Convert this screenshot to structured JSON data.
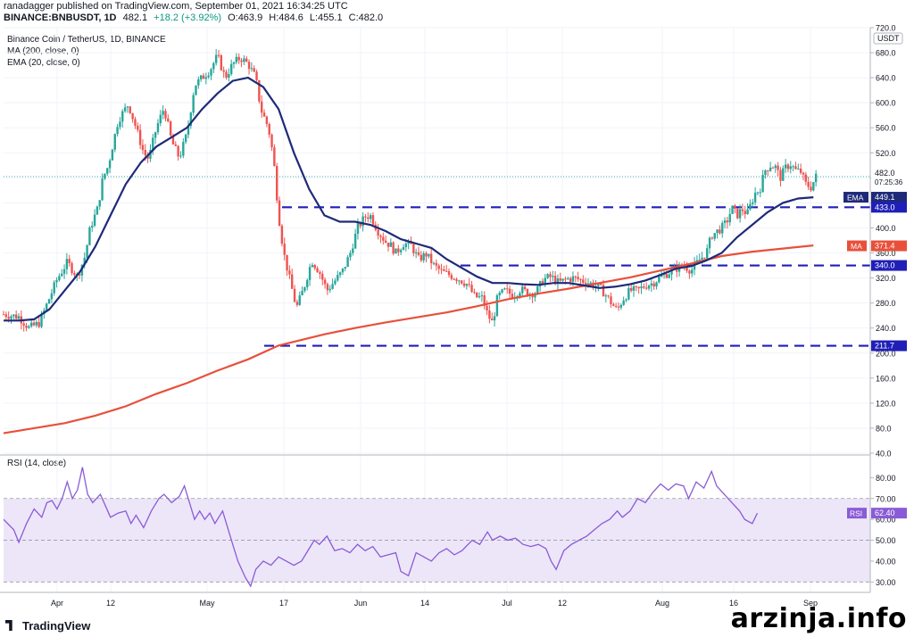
{
  "header": {
    "publisher_line": "ranadagger published on TradingView.com, September 01, 2021 16:34:25 UTC",
    "symbol": "BINANCE:BNBUSDT, 1D",
    "last": "482.1",
    "change": "+18.2 (+3.92%)",
    "open": "O:463.9",
    "high": "H:484.6",
    "low": "L:455.1",
    "close": "C:482.0"
  },
  "legend": {
    "title": "Binance Coin / TetherUS, 1D, BINANCE",
    "ma": "MA (200, close, 0)",
    "ema": "EMA (20, close, 0)",
    "rsi": "RSI (14, close)"
  },
  "footer": {
    "logo": "TradingView",
    "watermark": "arzinja.info"
  },
  "colors": {
    "up": "#26a69a",
    "down": "#ef5350",
    "ema": "#1e2a78",
    "ma": "#e8503a",
    "level": "#1f1fb8",
    "rsi": "#8a5bd6",
    "rsi_band": "#ede6f9"
  },
  "chart_data": [
    {
      "type": "candlestick",
      "currency": "USDT",
      "ylim": [
        40,
        720
      ],
      "yticks": [
        "720.0",
        "680.0",
        "640.0",
        "600.0",
        "560.0",
        "520.0",
        "480.0",
        "440.0",
        "400.0",
        "360.0",
        "320.0",
        "280.0",
        "240.0",
        "200.0",
        "160.0",
        "120.0",
        "80.0",
        "40.0"
      ],
      "xticks": [
        "Apr",
        "12",
        "May",
        "17",
        "Jun",
        "14",
        "Jul",
        "12",
        "Aug",
        "16",
        "Sep"
      ],
      "last_price": {
        "value": 482.0,
        "label": "482.0",
        "countdown": "07:25:36"
      },
      "levels": [
        433.0,
        340.0,
        211.7
      ],
      "level_labels": [
        "433.0",
        "340.0",
        "211.7"
      ],
      "ema_label": {
        "tag": "EMA",
        "value": 449.1,
        "label": "449.1"
      },
      "ma_label": {
        "tag": "MA",
        "value": 371.4,
        "label": "371.4"
      },
      "close_path": [
        [
          0,
          262
        ],
        [
          12,
          258
        ],
        [
          20,
          240
        ],
        [
          28,
          248
        ],
        [
          34,
          278
        ],
        [
          42,
          318
        ],
        [
          50,
          345
        ],
        [
          58,
          322
        ],
        [
          64,
          355
        ],
        [
          68,
          400
        ],
        [
          74,
          432
        ],
        [
          78,
          480
        ],
        [
          82,
          498
        ],
        [
          90,
          572
        ],
        [
          98,
          598
        ],
        [
          104,
          560
        ],
        [
          110,
          520
        ],
        [
          114,
          510
        ],
        [
          120,
          560
        ],
        [
          126,
          592
        ],
        [
          132,
          538
        ],
        [
          138,
          512
        ],
        [
          144,
          550
        ],
        [
          150,
          628
        ],
        [
          156,
          640
        ],
        [
          162,
          652
        ],
        [
          168,
          675
        ],
        [
          174,
          640
        ],
        [
          180,
          662
        ],
        [
          186,
          672
        ],
        [
          192,
          662
        ],
        [
          198,
          640
        ],
        [
          202,
          590
        ],
        [
          208,
          560
        ],
        [
          212,
          512
        ],
        [
          216,
          420
        ],
        [
          220,
          360
        ],
        [
          224,
          324
        ],
        [
          230,
          272
        ],
        [
          236,
          305
        ],
        [
          242,
          348
        ],
        [
          248,
          330
        ],
        [
          254,
          300
        ],
        [
          260,
          315
        ],
        [
          266,
          330
        ],
        [
          272,
          358
        ],
        [
          278,
          400
        ],
        [
          284,
          418
        ],
        [
          288,
          420
        ],
        [
          294,
          395
        ],
        [
          300,
          378
        ],
        [
          304,
          372
        ],
        [
          308,
          360
        ],
        [
          314,
          375
        ],
        [
          320,
          372
        ],
        [
          326,
          350
        ],
        [
          332,
          358
        ],
        [
          338,
          340
        ],
        [
          344,
          330
        ],
        [
          350,
          325
        ],
        [
          358,
          318
        ],
        [
          364,
          310
        ],
        [
          370,
          290
        ],
        [
          376,
          288
        ],
        [
          380,
          262
        ],
        [
          384,
          248
        ],
        [
          388,
          290
        ],
        [
          394,
          300
        ],
        [
          400,
          292
        ],
        [
          406,
          302
        ],
        [
          412,
          296
        ],
        [
          418,
          296
        ],
        [
          424,
          318
        ],
        [
          430,
          322
        ],
        [
          436,
          312
        ],
        [
          442,
          318
        ],
        [
          448,
          320
        ],
        [
          454,
          316
        ],
        [
          460,
          312
        ],
        [
          468,
          305
        ],
        [
          474,
          290
        ],
        [
          478,
          278
        ],
        [
          482,
          268
        ],
        [
          486,
          285
        ],
        [
          492,
          300
        ],
        [
          498,
          300
        ],
        [
          504,
          308
        ],
        [
          510,
          312
        ],
        [
          516,
          322
        ],
        [
          522,
          328
        ],
        [
          528,
          335
        ],
        [
          534,
          340
        ],
        [
          540,
          332
        ],
        [
          546,
          348
        ],
        [
          552,
          360
        ],
        [
          556,
          388
        ],
        [
          560,
          394
        ],
        [
          564,
          400
        ],
        [
          568,
          410
        ],
        [
          572,
          432
        ],
        [
          576,
          420
        ],
        [
          580,
          430
        ],
        [
          584,
          422
        ],
        [
          590,
          455
        ],
        [
          594,
          462
        ],
        [
          598,
          492
        ],
        [
          602,
          500
        ],
        [
          606,
          498
        ],
        [
          610,
          480
        ],
        [
          614,
          496
        ],
        [
          618,
          502
        ],
        [
          622,
          492
        ],
        [
          626,
          490
        ],
        [
          630,
          470
        ],
        [
          634,
          465
        ],
        [
          638,
          482
        ]
      ],
      "ema20_path": [
        [
          0,
          252
        ],
        [
          12,
          252
        ],
        [
          24,
          254
        ],
        [
          36,
          270
        ],
        [
          48,
          300
        ],
        [
          60,
          330
        ],
        [
          72,
          370
        ],
        [
          84,
          420
        ],
        [
          96,
          470
        ],
        [
          108,
          505
        ],
        [
          120,
          530
        ],
        [
          132,
          545
        ],
        [
          144,
          560
        ],
        [
          156,
          590
        ],
        [
          168,
          615
        ],
        [
          180,
          635
        ],
        [
          192,
          640
        ],
        [
          204,
          625
        ],
        [
          216,
          590
        ],
        [
          228,
          520
        ],
        [
          240,
          462
        ],
        [
          252,
          420
        ],
        [
          264,
          410
        ],
        [
          276,
          410
        ],
        [
          288,
          405
        ],
        [
          300,
          395
        ],
        [
          312,
          382
        ],
        [
          324,
          375
        ],
        [
          336,
          368
        ],
        [
          348,
          350
        ],
        [
          360,
          336
        ],
        [
          372,
          322
        ],
        [
          384,
          312
        ],
        [
          396,
          312
        ],
        [
          408,
          310
        ],
        [
          420,
          309
        ],
        [
          432,
          312
        ],
        [
          444,
          312
        ],
        [
          456,
          308
        ],
        [
          468,
          304
        ],
        [
          480,
          306
        ],
        [
          492,
          310
        ],
        [
          504,
          316
        ],
        [
          516,
          325
        ],
        [
          528,
          335
        ],
        [
          540,
          339
        ],
        [
          552,
          348
        ],
        [
          564,
          360
        ],
        [
          576,
          385
        ],
        [
          588,
          405
        ],
        [
          600,
          425
        ],
        [
          612,
          440
        ],
        [
          624,
          447
        ],
        [
          636,
          449
        ]
      ],
      "ma200_path": [
        [
          0,
          72
        ],
        [
          24,
          80
        ],
        [
          48,
          88
        ],
        [
          72,
          100
        ],
        [
          96,
          115
        ],
        [
          120,
          135
        ],
        [
          144,
          152
        ],
        [
          168,
          172
        ],
        [
          192,
          190
        ],
        [
          216,
          212
        ],
        [
          228,
          218
        ],
        [
          252,
          230
        ],
        [
          276,
          240
        ],
        [
          300,
          249
        ],
        [
          324,
          257
        ],
        [
          348,
          265
        ],
        [
          372,
          275
        ],
        [
          396,
          286
        ],
        [
          420,
          295
        ],
        [
          444,
          303
        ],
        [
          468,
          312
        ],
        [
          492,
          321
        ],
        [
          516,
          332
        ],
        [
          540,
          343
        ],
        [
          564,
          355
        ],
        [
          588,
          362
        ],
        [
          612,
          367
        ],
        [
          636,
          372
        ]
      ]
    },
    {
      "type": "line",
      "series_label": "RSI",
      "value_label": "62.40",
      "ylim": [
        25,
        90
      ],
      "yticks": [
        "80.00",
        "70.00",
        "60.00",
        "50.00",
        "40.00",
        "30.00"
      ],
      "bands": [
        30,
        50,
        70
      ],
      "path": [
        [
          0,
          60
        ],
        [
          8,
          55
        ],
        [
          12,
          49
        ],
        [
          18,
          58
        ],
        [
          24,
          65
        ],
        [
          30,
          61
        ],
        [
          34,
          68
        ],
        [
          38,
          69
        ],
        [
          42,
          65
        ],
        [
          46,
          70
        ],
        [
          50,
          78
        ],
        [
          54,
          70
        ],
        [
          58,
          74
        ],
        [
          62,
          85
        ],
        [
          66,
          72
        ],
        [
          70,
          68
        ],
        [
          76,
          72
        ],
        [
          84,
          61
        ],
        [
          90,
          63
        ],
        [
          96,
          64
        ],
        [
          100,
          58
        ],
        [
          104,
          62
        ],
        [
          110,
          56
        ],
        [
          116,
          64
        ],
        [
          122,
          70
        ],
        [
          126,
          72
        ],
        [
          132,
          68
        ],
        [
          138,
          71
        ],
        [
          142,
          76
        ],
        [
          146,
          68
        ],
        [
          150,
          60
        ],
        [
          154,
          64
        ],
        [
          158,
          60
        ],
        [
          162,
          63
        ],
        [
          166,
          58
        ],
        [
          172,
          64
        ],
        [
          178,
          52
        ],
        [
          184,
          40
        ],
        [
          190,
          32
        ],
        [
          194,
          28
        ],
        [
          198,
          36
        ],
        [
          204,
          40
        ],
        [
          210,
          38
        ],
        [
          216,
          42
        ],
        [
          222,
          40
        ],
        [
          228,
          38
        ],
        [
          234,
          40
        ],
        [
          238,
          44
        ],
        [
          244,
          50
        ],
        [
          248,
          48
        ],
        [
          254,
          52
        ],
        [
          260,
          45
        ],
        [
          266,
          46
        ],
        [
          272,
          44
        ],
        [
          278,
          48
        ],
        [
          284,
          45
        ],
        [
          290,
          47
        ],
        [
          296,
          42
        ],
        [
          302,
          43
        ],
        [
          308,
          44
        ],
        [
          312,
          35
        ],
        [
          318,
          33
        ],
        [
          324,
          44
        ],
        [
          330,
          42
        ],
        [
          336,
          40
        ],
        [
          342,
          44
        ],
        [
          348,
          46
        ],
        [
          354,
          43
        ],
        [
          360,
          45
        ],
        [
          368,
          50
        ],
        [
          374,
          48
        ],
        [
          380,
          54
        ],
        [
          384,
          50
        ],
        [
          390,
          52
        ],
        [
          396,
          50
        ],
        [
          402,
          51
        ],
        [
          408,
          48
        ],
        [
          414,
          47
        ],
        [
          420,
          48
        ],
        [
          426,
          46
        ],
        [
          430,
          40
        ],
        [
          434,
          36
        ],
        [
          440,
          45
        ],
        [
          446,
          48
        ],
        [
          452,
          50
        ],
        [
          458,
          52
        ],
        [
          464,
          55
        ],
        [
          470,
          58
        ],
        [
          476,
          60
        ],
        [
          482,
          64
        ],
        [
          486,
          61
        ],
        [
          492,
          64
        ],
        [
          498,
          70
        ],
        [
          504,
          68
        ],
        [
          510,
          73
        ],
        [
          516,
          77
        ],
        [
          522,
          74
        ],
        [
          528,
          77
        ],
        [
          534,
          76
        ],
        [
          538,
          70
        ],
        [
          544,
          78
        ],
        [
          550,
          75
        ],
        [
          556,
          83
        ],
        [
          560,
          76
        ],
        [
          566,
          72
        ],
        [
          572,
          68
        ],
        [
          578,
          64
        ],
        [
          582,
          60
        ],
        [
          588,
          58
        ],
        [
          592,
          63
        ]
      ]
    }
  ]
}
